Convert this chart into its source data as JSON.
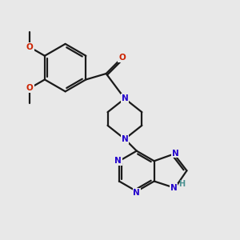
{
  "bg": "#e8e8e8",
  "bc": "#1a1a1a",
  "nc": "#2200cc",
  "oc": "#cc2200",
  "nhc": "#4a9090",
  "lw": 1.6,
  "fs": 7.5,
  "figsize": [
    3.0,
    3.0
  ],
  "dpi": 100,
  "xlim": [
    0,
    10
  ],
  "ylim": [
    0,
    10
  ]
}
